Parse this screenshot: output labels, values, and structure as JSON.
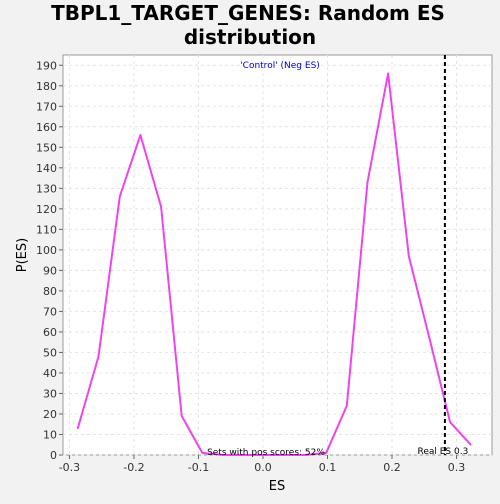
{
  "chart_data": {
    "type": "line",
    "title_lines": [
      "TBPL1_TARGET_GENES: Random ES",
      "distribution"
    ],
    "xlabel": "ES",
    "ylabel": "P(ES)",
    "xlim": [
      -0.31,
      0.355
    ],
    "ylim": [
      0,
      195
    ],
    "x_ticks": [
      -0.3,
      -0.2,
      -0.1,
      0.0,
      0.1,
      0.2,
      0.3
    ],
    "x_tick_labels": [
      "-0.3",
      "-0.2",
      "-0.1",
      "0.0",
      "0.1",
      "0.2",
      "0.3"
    ],
    "y_ticks": [
      0,
      10,
      20,
      30,
      40,
      50,
      60,
      70,
      80,
      90,
      100,
      110,
      120,
      130,
      140,
      150,
      160,
      170,
      180,
      190
    ],
    "grid": true,
    "series": [
      {
        "color": "#ee44ee",
        "x": [
          -0.287,
          -0.255,
          -0.222,
          -0.19,
          -0.158,
          -0.126,
          -0.094,
          -0.062,
          -0.03,
          0.002,
          0.034,
          0.066,
          0.098,
          0.13,
          0.162,
          0.194,
          0.226,
          0.258,
          0.29,
          0.322
        ],
        "y": [
          13,
          48,
          126,
          156,
          121,
          19,
          1,
          0,
          0,
          0,
          0,
          0,
          1,
          24,
          133,
          186,
          97,
          57,
          16,
          5
        ]
      }
    ],
    "reference_line": {
      "x": 0.282,
      "label": "Real ES 0.3",
      "style": "dashed",
      "color": "#000000"
    },
    "annotations": {
      "legend_text": "'Control' (Neg ES)",
      "legend_color": "#0000cc",
      "pos_scores_text": "Sets with pos scores: 52%"
    }
  }
}
